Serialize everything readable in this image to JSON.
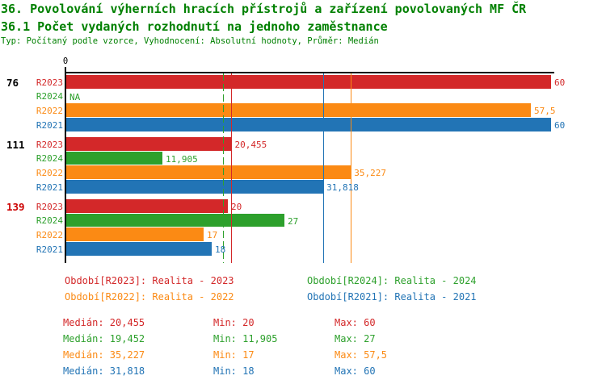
{
  "header": {
    "title": "36. Povolování výherních hracích přístrojů a zařízení povolovaných MF ČR",
    "subtitle": "36.1 Počet vydaných rozhodnutí na jednoho zaměstnance",
    "meta": "Typ: Počítaný podle vzorce, Vyhodnocení: Absolutní hodnoty, Průměr: Medián",
    "title_color": "#008000"
  },
  "chart_data": {
    "type": "bar",
    "orientation": "horizontal",
    "x_axis": {
      "min": 0,
      "max": 60,
      "tick_label": "0",
      "grid": false
    },
    "series": [
      {
        "id": "R2023",
        "name": "Realita - 2023",
        "color": "#d32829"
      },
      {
        "id": "R2024",
        "name": "Realita - 2024",
        "color": "#2da02c"
      },
      {
        "id": "R2022",
        "name": "Realita - 2022",
        "color": "#fb8a14"
      },
      {
        "id": "R2021",
        "name": "Realita - 2021",
        "color": "#2274b5"
      }
    ],
    "groups": [
      {
        "label": "76",
        "label_color": "#000000",
        "bars": [
          {
            "series": "R2023",
            "value": 60,
            "value_label": "60"
          },
          {
            "series": "R2024",
            "value": null,
            "value_label": "NA"
          },
          {
            "series": "R2022",
            "value": 57.5,
            "value_label": "57,5"
          },
          {
            "series": "R2021",
            "value": 60,
            "value_label": "60"
          }
        ]
      },
      {
        "label": "111",
        "label_color": "#000000",
        "bars": [
          {
            "series": "R2023",
            "value": 20.455,
            "value_label": "20,455"
          },
          {
            "series": "R2024",
            "value": 11.905,
            "value_label": "11,905"
          },
          {
            "series": "R2022",
            "value": 35.227,
            "value_label": "35,227"
          },
          {
            "series": "R2021",
            "value": 31.818,
            "value_label": "31,818"
          }
        ]
      },
      {
        "label": "139",
        "label_color": "#cc0000",
        "bars": [
          {
            "series": "R2023",
            "value": 20,
            "value_label": "20"
          },
          {
            "series": "R2024",
            "value": 27,
            "value_label": "27"
          },
          {
            "series": "R2022",
            "value": 17,
            "value_label": "17"
          },
          {
            "series": "R2021",
            "value": 18,
            "value_label": "18"
          }
        ]
      }
    ],
    "median_lines": [
      {
        "series": "R2023",
        "value": 20.455,
        "style": "solid"
      },
      {
        "series": "R2024",
        "value": 19.452,
        "style": "dashed"
      },
      {
        "series": "R2022",
        "value": 35.227,
        "style": "solid"
      },
      {
        "series": "R2021",
        "value": 31.818,
        "style": "solid"
      }
    ]
  },
  "legend": {
    "items": [
      {
        "text": "Období[R2023]: Realita - 2023",
        "series": "R2023"
      },
      {
        "text": "Období[R2024]: Realita - 2024",
        "series": "R2024"
      },
      {
        "text": "Období[R2022]: Realita - 2022",
        "series": "R2022"
      },
      {
        "text": "Období[R2021]: Realita - 2021",
        "series": "R2021"
      }
    ]
  },
  "stats": {
    "rows": [
      {
        "series": "R2023",
        "median": "Medián: 20,455",
        "min": "Min: 20",
        "max": "Max: 60"
      },
      {
        "series": "R2024",
        "median": "Medián: 19,452",
        "min": "Min: 11,905",
        "max": "Max: 27"
      },
      {
        "series": "R2022",
        "median": "Medián: 35,227",
        "min": "Min: 17",
        "max": "Max: 57,5"
      },
      {
        "series": "R2021",
        "median": "Medián: 31,818",
        "min": "Min: 18",
        "max": "Max: 60"
      }
    ]
  }
}
